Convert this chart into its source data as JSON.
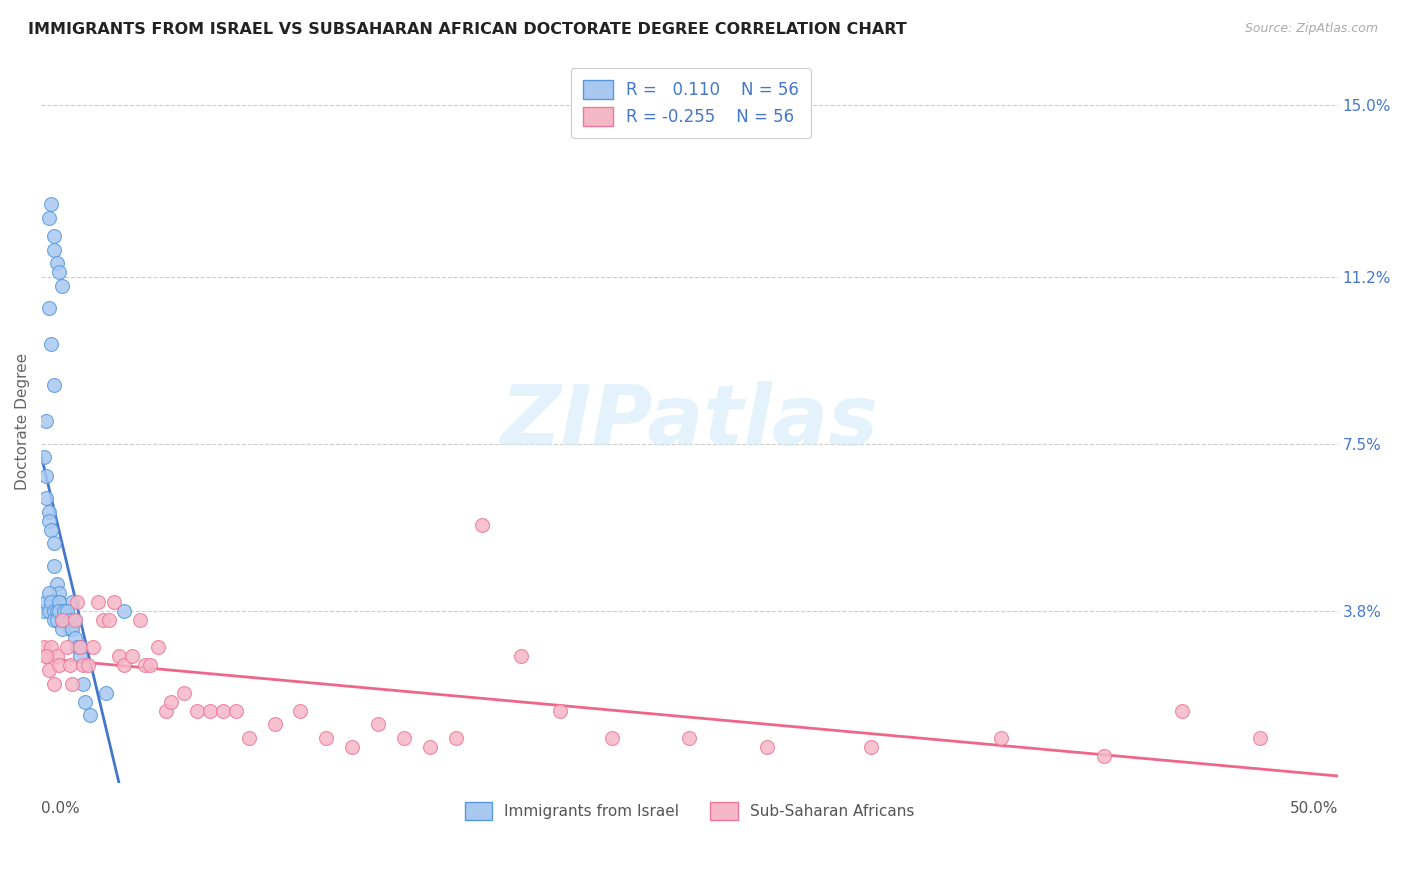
{
  "title": "IMMIGRANTS FROM ISRAEL VS SUBSAHARAN AFRICAN DOCTORATE DEGREE CORRELATION CHART",
  "source": "Source: ZipAtlas.com",
  "ylabel": "Doctorate Degree",
  "right_ytick_vals": [
    0.038,
    0.075,
    0.112,
    0.15
  ],
  "right_ytick_labels": [
    "3.8%",
    "7.5%",
    "11.2%",
    "15.0%"
  ],
  "xlim": [
    0.0,
    0.5
  ],
  "ylim": [
    0.0,
    0.16
  ],
  "xtick_vals": [
    0.0,
    0.1,
    0.2,
    0.3,
    0.4,
    0.5
  ],
  "xtick_labels_left": "0.0%",
  "xtick_labels_right": "50.0%",
  "color_israel": "#a8c8f0",
  "color_israel_edge": "#5599dd",
  "color_subsaharan": "#f5b8c8",
  "color_subsaharan_edge": "#ee7799",
  "color_israel_line": "#4477cc",
  "color_subsaharan_line": "#ee6688",
  "R_israel": 0.11,
  "R_subsaharan": -0.255,
  "N": 56,
  "watermark": "ZIPatlas",
  "legend_text_color": "#4477cc",
  "israel_x": [
    0.003,
    0.004,
    0.005,
    0.005,
    0.006,
    0.007,
    0.008,
    0.003,
    0.004,
    0.005,
    0.001,
    0.002,
    0.002,
    0.002,
    0.003,
    0.003,
    0.004,
    0.005,
    0.005,
    0.006,
    0.007,
    0.007,
    0.008,
    0.009,
    0.01,
    0.01,
    0.011,
    0.012,
    0.013,
    0.001,
    0.002,
    0.003,
    0.003,
    0.004,
    0.005,
    0.005,
    0.006,
    0.006,
    0.007,
    0.007,
    0.008,
    0.008,
    0.009,
    0.009,
    0.01,
    0.011,
    0.012,
    0.013,
    0.014,
    0.015,
    0.016,
    0.017,
    0.019,
    0.025,
    0.032,
    0.015
  ],
  "israel_y": [
    0.125,
    0.128,
    0.118,
    0.121,
    0.115,
    0.113,
    0.11,
    0.105,
    0.097,
    0.088,
    0.072,
    0.08,
    0.068,
    0.063,
    0.06,
    0.058,
    0.056,
    0.053,
    0.048,
    0.044,
    0.042,
    0.04,
    0.038,
    0.036,
    0.038,
    0.036,
    0.034,
    0.04,
    0.036,
    0.038,
    0.04,
    0.042,
    0.038,
    0.04,
    0.038,
    0.036,
    0.038,
    0.036,
    0.04,
    0.038,
    0.036,
    0.034,
    0.038,
    0.036,
    0.038,
    0.036,
    0.034,
    0.032,
    0.03,
    0.028,
    0.022,
    0.018,
    0.015,
    0.02,
    0.038,
    0.03
  ],
  "subsaharan_x": [
    0.001,
    0.002,
    0.003,
    0.004,
    0.005,
    0.006,
    0.007,
    0.008,
    0.01,
    0.011,
    0.012,
    0.013,
    0.014,
    0.015,
    0.016,
    0.018,
    0.02,
    0.022,
    0.024,
    0.026,
    0.028,
    0.03,
    0.032,
    0.035,
    0.038,
    0.04,
    0.042,
    0.045,
    0.048,
    0.05,
    0.055,
    0.06,
    0.065,
    0.07,
    0.075,
    0.08,
    0.09,
    0.1,
    0.11,
    0.12,
    0.13,
    0.14,
    0.15,
    0.16,
    0.17,
    0.185,
    0.2,
    0.22,
    0.25,
    0.28,
    0.32,
    0.37,
    0.41,
    0.44,
    0.47,
    0.002
  ],
  "subsaharan_y": [
    0.03,
    0.028,
    0.025,
    0.03,
    0.022,
    0.028,
    0.026,
    0.036,
    0.03,
    0.026,
    0.022,
    0.036,
    0.04,
    0.03,
    0.026,
    0.026,
    0.03,
    0.04,
    0.036,
    0.036,
    0.04,
    0.028,
    0.026,
    0.028,
    0.036,
    0.026,
    0.026,
    0.03,
    0.016,
    0.018,
    0.02,
    0.016,
    0.016,
    0.016,
    0.016,
    0.01,
    0.013,
    0.016,
    0.01,
    0.008,
    0.013,
    0.01,
    0.008,
    0.01,
    0.057,
    0.028,
    0.016,
    0.01,
    0.01,
    0.008,
    0.008,
    0.01,
    0.006,
    0.016,
    0.01,
    0.028
  ]
}
